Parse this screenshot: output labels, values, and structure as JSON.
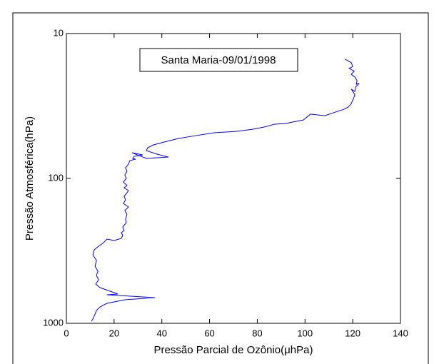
{
  "chart_data": {
    "type": "line",
    "annotation": "Santa Maria-09/01/1998",
    "x_label": "Pressão Parcial de Ozônio(μhPa)",
    "y_label": "Pressão Atmosférica(hPa)",
    "color": "#0000ff",
    "y_log": true,
    "xlim": [
      0,
      140
    ],
    "xticks": [
      0,
      20,
      40,
      60,
      80,
      100,
      120,
      140
    ],
    "ylim": [
      1000,
      10
    ],
    "yticks": [
      10,
      100,
      1000
    ],
    "x": [
      116.7,
      119.4,
      120.0,
      118.5,
      120.6,
      119.4,
      120.9,
      121.8,
      121.5,
      122.7,
      121.2,
      120.9,
      119.4,
      120.9,
      120.3,
      119.4,
      118.1,
      116.4,
      112.8,
      108.3,
      102.3,
      99.3,
      94.8,
      91.8,
      87.3,
      82.8,
      78.3,
      71.5,
      61.9,
      54.4,
      47.0,
      41.0,
      36.5,
      34.1,
      33.5,
      38.0,
      42.8,
      33.5,
      27.5,
      32.0,
      28.4,
      27.8,
      29.0,
      26.6,
      26.0,
      24.8,
      25.4,
      24.5,
      25.1,
      23.9,
      25.4,
      24.2,
      26.0,
      25.4,
      24.2,
      24.8,
      23.9,
      26.0,
      24.5,
      25.4,
      24.8,
      25.1,
      23.6,
      24.2,
      23.0,
      23.6,
      23.0,
      20.0,
      17.0,
      15.6,
      13.5,
      11.7,
      11.1,
      12.6,
      12.0,
      13.2,
      12.6,
      13.5,
      12.3,
      14.1,
      20.0,
      21.5,
      17.0,
      32.0,
      37.1,
      24.5,
      21.5,
      17.0,
      14.1,
      12.6,
      12.0,
      11.1,
      10.5
    ],
    "y": [
      15.0,
      15.9,
      16.9,
      17.4,
      18.2,
      19.1,
      20.0,
      21.1,
      22.4,
      22.1,
      23.4,
      25.1,
      24.2,
      26.5,
      28.1,
      30.4,
      32.2,
      33.3,
      34.8,
      36.9,
      36.0,
      39.5,
      40.8,
      41.8,
      42.2,
      44.2,
      45.7,
      47.3,
      48.4,
      50.6,
      53.0,
      56.1,
      58.7,
      61.4,
      64.3,
      68.0,
      71.2,
      72.8,
      66.5,
      68.8,
      70.4,
      72.8,
      73.6,
      75.3,
      79.7,
      84.4,
      89.3,
      94.5,
      100,
      105.8,
      112,
      115.9,
      121.3,
      125.5,
      132.8,
      140.6,
      148.8,
      157.4,
      166.6,
      176.3,
      190.9,
      202.0,
      216.3,
      228.9,
      236.8,
      247.8,
      259.3,
      268.3,
      262.3,
      277.5,
      293.8,
      311.0,
      336.6,
      368.6,
      403.6,
      436.9,
      467.7,
      500.7,
      535.9,
      567.2,
      614.1,
      628.1,
      635.3,
      657.3,
      664.8,
      687.8,
      703.6,
      728.0,
      770.4,
      815.5,
      863.0,
      934.2,
      966.5
    ]
  }
}
